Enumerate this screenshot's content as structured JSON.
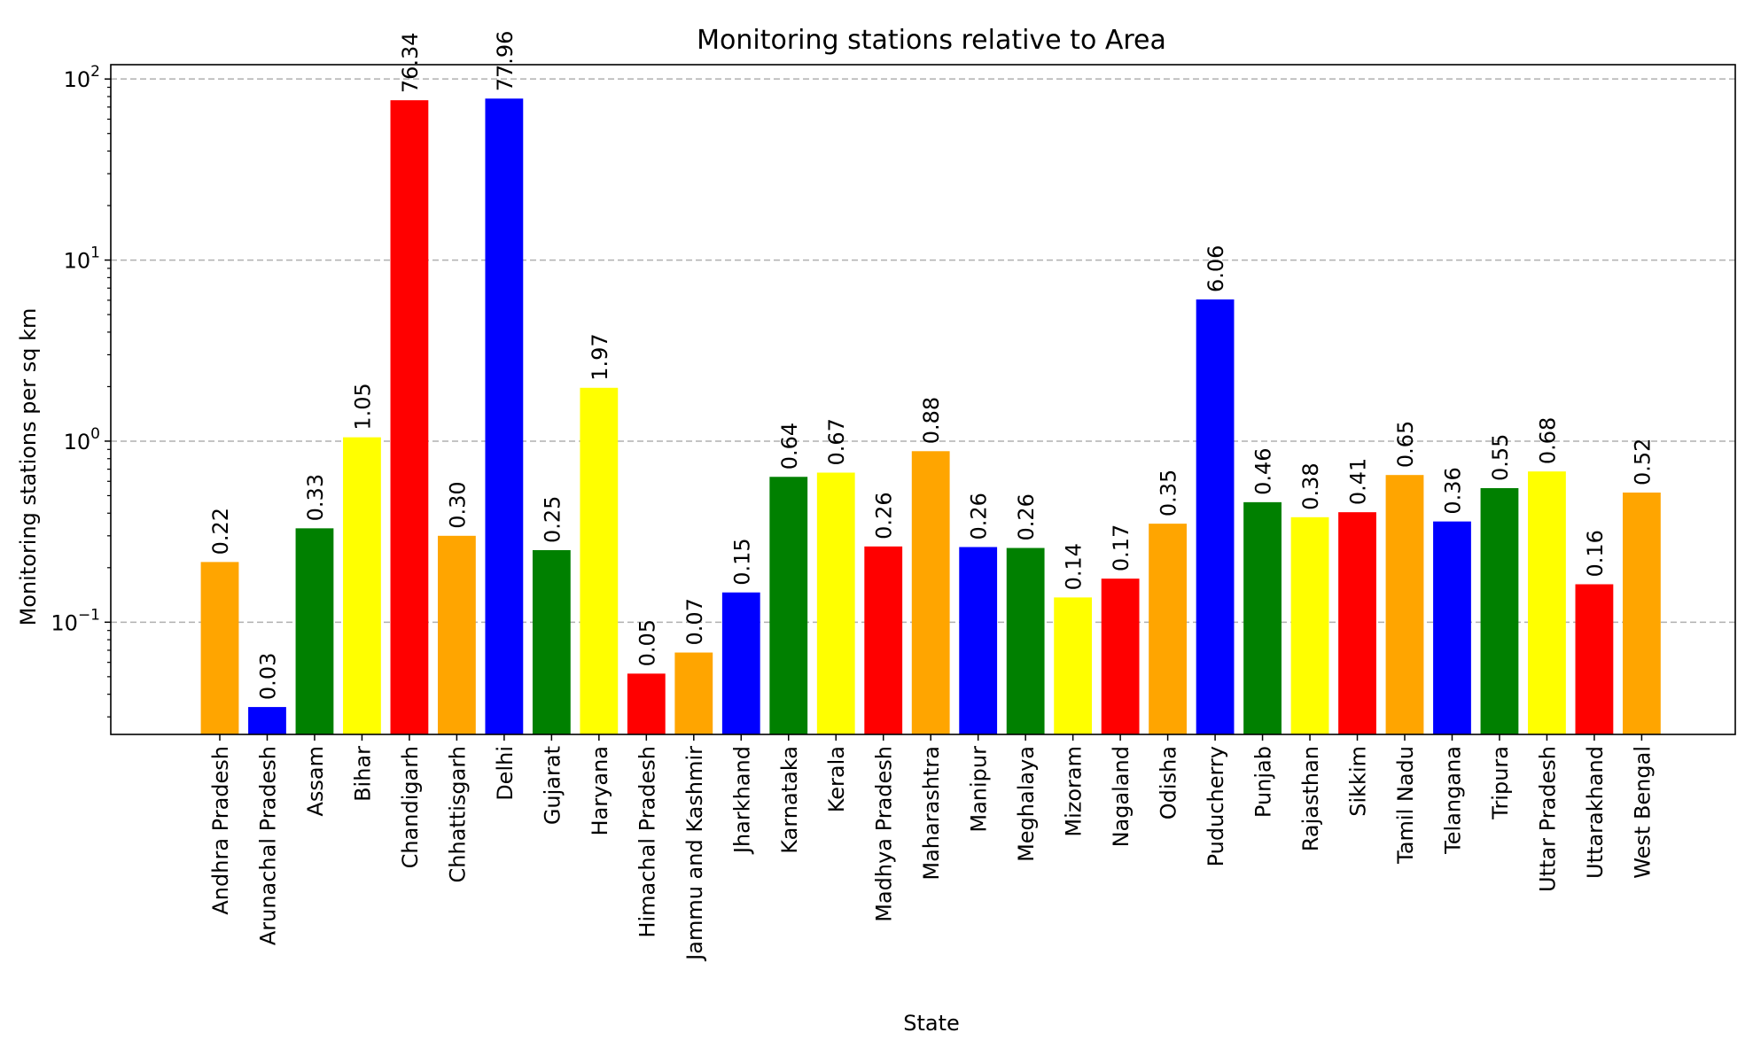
{
  "chart_data": {
    "type": "bar",
    "title": "Monitoring stations relative to Area",
    "xlabel": "State",
    "ylabel": "Monitoring stations per sq km",
    "yscale": "log",
    "ylim": [
      0.024,
      120
    ],
    "yticks": [
      {
        "value": 0.1,
        "base": "10",
        "exp": "−1"
      },
      {
        "value": 1,
        "base": "10",
        "exp": "0"
      },
      {
        "value": 10,
        "base": "10",
        "exp": "1"
      },
      {
        "value": 100,
        "base": "10",
        "exp": "2"
      }
    ],
    "grid": "y-major-dashed",
    "categories": [
      "Andhra Pradesh",
      "Arunachal Pradesh",
      "Assam",
      "Bihar",
      "Chandigarh",
      "Chhattisgarh",
      "Delhi",
      "Gujarat",
      "Haryana",
      "Himachal Pradesh",
      "Jammu and Kashmir",
      "Jharkhand",
      "Karnataka",
      "Kerala",
      "Madhya Pradesh",
      "Maharashtra",
      "Manipur",
      "Meghalaya",
      "Mizoram",
      "Nagaland",
      "Odisha",
      "Puducherry",
      "Punjab",
      "Rajasthan",
      "Sikkim",
      "Tamil Nadu",
      "Telangana",
      "Tripura",
      "Uttar Pradesh",
      "Uttarakhand",
      "West Bengal"
    ],
    "values": [
      0.215,
      0.034,
      0.33,
      1.05,
      76.34,
      0.3,
      77.96,
      0.25,
      1.97,
      0.052,
      0.068,
      0.146,
      0.635,
      0.67,
      0.262,
      0.88,
      0.26,
      0.257,
      0.137,
      0.174,
      0.35,
      6.06,
      0.46,
      0.38,
      0.405,
      0.65,
      0.36,
      0.55,
      0.68,
      0.162,
      0.52
    ],
    "labels": [
      "0.22",
      "0.03",
      "0.33",
      "1.05",
      "76.34",
      "0.30",
      "77.96",
      "0.25",
      "1.97",
      "0.05",
      "0.07",
      "0.15",
      "0.64",
      "0.67",
      "0.26",
      "0.88",
      "0.26",
      "0.26",
      "0.14",
      "0.17",
      "0.35",
      "6.06",
      "0.46",
      "0.38",
      "0.41",
      "0.65",
      "0.36",
      "0.55",
      "0.68",
      "0.16",
      "0.52"
    ],
    "colors": [
      "#FFA500",
      "#0000FF",
      "#008000",
      "#FFFF00",
      "#FF0000",
      "#FFA500",
      "#0000FF",
      "#008000",
      "#FFFF00",
      "#FF0000",
      "#FFA500",
      "#0000FF",
      "#008000",
      "#FFFF00",
      "#FF0000",
      "#FFA500",
      "#0000FF",
      "#008000",
      "#FFFF00",
      "#FF0000",
      "#FFA500",
      "#0000FF",
      "#008000",
      "#FFFF00",
      "#FF0000",
      "#FFA500",
      "#0000FF",
      "#008000",
      "#FFFF00",
      "#FF0000",
      "#FFA500"
    ]
  }
}
